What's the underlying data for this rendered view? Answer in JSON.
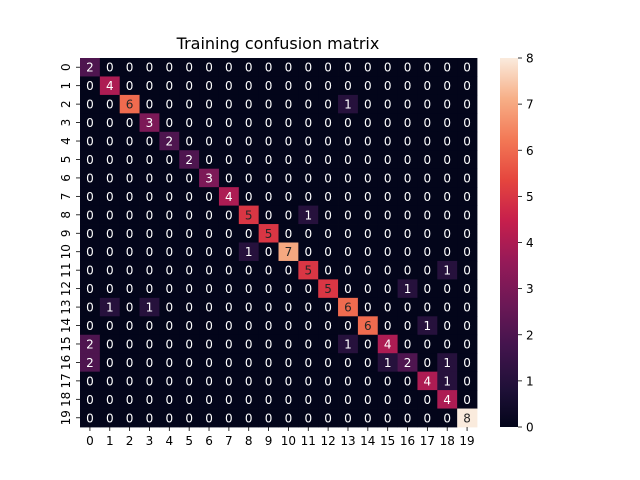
{
  "chart_data": {
    "type": "heatmap",
    "title": "Training confusion matrix",
    "xlabel": "",
    "ylabel": "",
    "x_ticks": [
      "0",
      "1",
      "2",
      "3",
      "4",
      "5",
      "6",
      "7",
      "8",
      "9",
      "10",
      "11",
      "12",
      "13",
      "14",
      "15",
      "16",
      "17",
      "18",
      "19"
    ],
    "y_ticks": [
      "0",
      "1",
      "2",
      "3",
      "4",
      "5",
      "6",
      "7",
      "8",
      "9",
      "10",
      "11",
      "12",
      "13",
      "14",
      "15",
      "16",
      "17",
      "18",
      "19"
    ],
    "values": [
      [
        2,
        0,
        0,
        0,
        0,
        0,
        0,
        0,
        0,
        0,
        0,
        0,
        0,
        0,
        0,
        0,
        0,
        0,
        0,
        0
      ],
      [
        0,
        4,
        0,
        0,
        0,
        0,
        0,
        0,
        0,
        0,
        0,
        0,
        0,
        0,
        0,
        0,
        0,
        0,
        0,
        0
      ],
      [
        0,
        0,
        6,
        0,
        0,
        0,
        0,
        0,
        0,
        0,
        0,
        0,
        0,
        1,
        0,
        0,
        0,
        0,
        0,
        0
      ],
      [
        0,
        0,
        0,
        3,
        0,
        0,
        0,
        0,
        0,
        0,
        0,
        0,
        0,
        0,
        0,
        0,
        0,
        0,
        0,
        0
      ],
      [
        0,
        0,
        0,
        0,
        2,
        0,
        0,
        0,
        0,
        0,
        0,
        0,
        0,
        0,
        0,
        0,
        0,
        0,
        0,
        0
      ],
      [
        0,
        0,
        0,
        0,
        0,
        2,
        0,
        0,
        0,
        0,
        0,
        0,
        0,
        0,
        0,
        0,
        0,
        0,
        0,
        0
      ],
      [
        0,
        0,
        0,
        0,
        0,
        0,
        3,
        0,
        0,
        0,
        0,
        0,
        0,
        0,
        0,
        0,
        0,
        0,
        0,
        0
      ],
      [
        0,
        0,
        0,
        0,
        0,
        0,
        0,
        4,
        0,
        0,
        0,
        0,
        0,
        0,
        0,
        0,
        0,
        0,
        0,
        0
      ],
      [
        0,
        0,
        0,
        0,
        0,
        0,
        0,
        0,
        5,
        0,
        0,
        1,
        0,
        0,
        0,
        0,
        0,
        0,
        0,
        0
      ],
      [
        0,
        0,
        0,
        0,
        0,
        0,
        0,
        0,
        0,
        5,
        0,
        0,
        0,
        0,
        0,
        0,
        0,
        0,
        0,
        0
      ],
      [
        0,
        0,
        0,
        0,
        0,
        0,
        0,
        0,
        1,
        0,
        7,
        0,
        0,
        0,
        0,
        0,
        0,
        0,
        0,
        0
      ],
      [
        0,
        0,
        0,
        0,
        0,
        0,
        0,
        0,
        0,
        0,
        0,
        5,
        0,
        0,
        0,
        0,
        0,
        0,
        1,
        0
      ],
      [
        0,
        0,
        0,
        0,
        0,
        0,
        0,
        0,
        0,
        0,
        0,
        0,
        5,
        0,
        0,
        0,
        1,
        0,
        0,
        0
      ],
      [
        0,
        1,
        0,
        1,
        0,
        0,
        0,
        0,
        0,
        0,
        0,
        0,
        0,
        6,
        0,
        0,
        0,
        0,
        0,
        0
      ],
      [
        0,
        0,
        0,
        0,
        0,
        0,
        0,
        0,
        0,
        0,
        0,
        0,
        0,
        0,
        6,
        0,
        0,
        1,
        0,
        0
      ],
      [
        2,
        0,
        0,
        0,
        0,
        0,
        0,
        0,
        0,
        0,
        0,
        0,
        0,
        1,
        0,
        4,
        0,
        0,
        0,
        0
      ],
      [
        2,
        0,
        0,
        0,
        0,
        0,
        0,
        0,
        0,
        0,
        0,
        0,
        0,
        0,
        0,
        1,
        2,
        0,
        1,
        0
      ],
      [
        0,
        0,
        0,
        0,
        0,
        0,
        0,
        0,
        0,
        0,
        0,
        0,
        0,
        0,
        0,
        0,
        0,
        4,
        1,
        0
      ],
      [
        0,
        0,
        0,
        0,
        0,
        0,
        0,
        0,
        0,
        0,
        0,
        0,
        0,
        0,
        0,
        0,
        0,
        0,
        4,
        0
      ],
      [
        0,
        0,
        0,
        0,
        0,
        0,
        0,
        0,
        0,
        0,
        0,
        0,
        0,
        0,
        0,
        0,
        0,
        0,
        0,
        8
      ]
    ],
    "colorbar": {
      "range": [
        0,
        8
      ],
      "ticks": [
        "0",
        "1",
        "2",
        "3",
        "4",
        "5",
        "6",
        "7",
        "8"
      ]
    },
    "colormap": "rocket",
    "annotations": true,
    "grid": false,
    "legend": "colorbar-right"
  }
}
